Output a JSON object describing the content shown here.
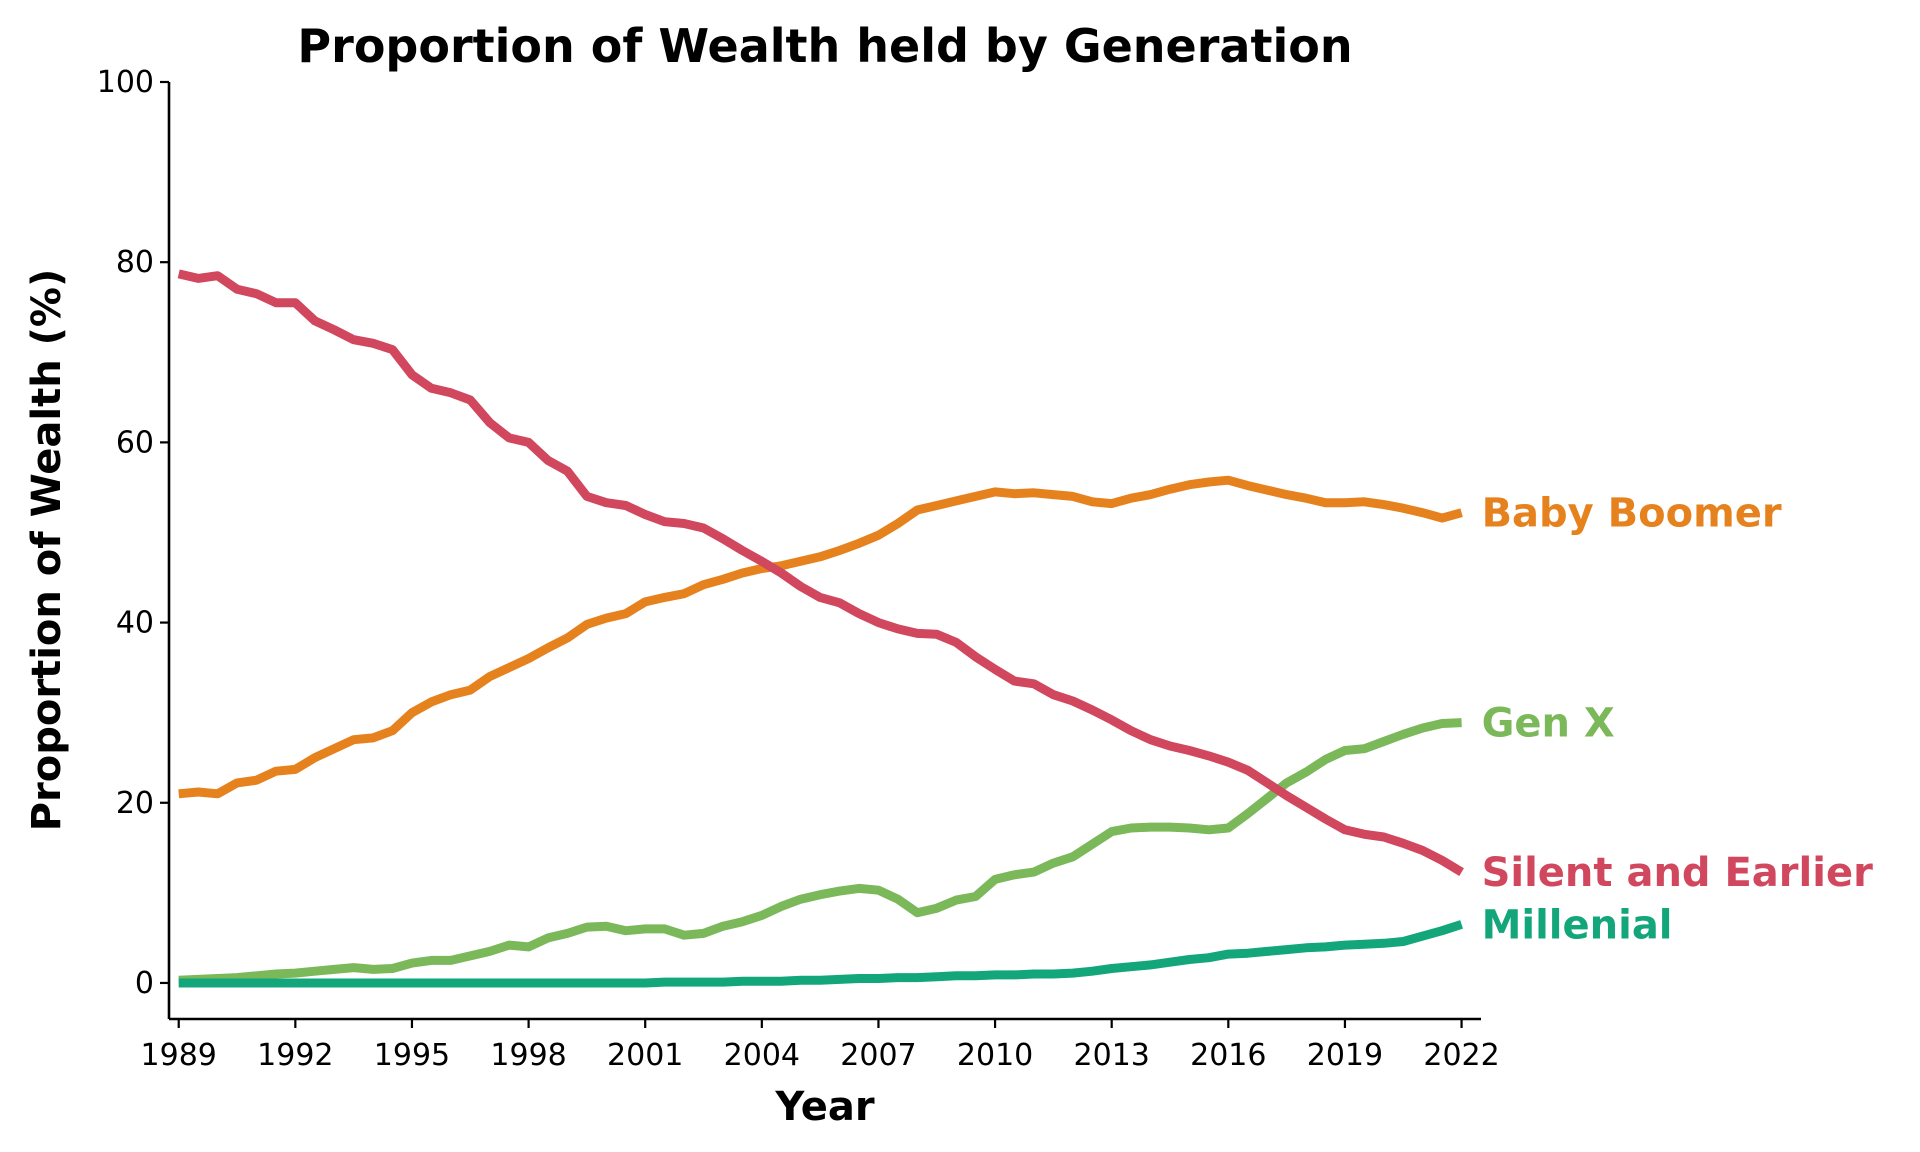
{
  "chart_data": {
    "type": "line",
    "title": "Proportion of Wealth held by Generation",
    "xlabel": "Year",
    "ylabel": "Proportion of Wealth (%)",
    "xlim": [
      1988.75,
      2022.5
    ],
    "ylim": [
      -4,
      100
    ],
    "x_ticks": [
      1989,
      1992,
      1995,
      1998,
      2001,
      2004,
      2007,
      2010,
      2013,
      2016,
      2019,
      2022
    ],
    "y_ticks": [
      0,
      20,
      40,
      60,
      80,
      100
    ],
    "grid": false,
    "legend": "direct-labels-right",
    "x": [
      1989,
      1989.5,
      1990,
      1990.5,
      1991,
      1991.5,
      1992,
      1992.5,
      1993,
      1993.5,
      1994,
      1994.5,
      1995,
      1995.5,
      1996,
      1996.5,
      1997,
      1997.5,
      1998,
      1998.5,
      1999,
      1999.5,
      2000,
      2000.5,
      2001,
      2001.5,
      2002,
      2002.5,
      2003,
      2003.5,
      2004,
      2004.5,
      2005,
      2005.5,
      2006,
      2006.5,
      2007,
      2007.5,
      2008,
      2008.5,
      2009,
      2009.5,
      2010,
      2010.5,
      2011,
      2011.5,
      2012,
      2012.5,
      2013,
      2013.5,
      2014,
      2014.5,
      2015,
      2015.5,
      2016,
      2016.5,
      2017,
      2017.5,
      2018,
      2018.5,
      2019,
      2019.5,
      2020,
      2020.5,
      2021,
      2021.5,
      2022
    ],
    "series": [
      {
        "name": "Baby Boomer",
        "color": "#e6821e",
        "values": [
          21.0,
          21.2,
          21.0,
          22.2,
          22.5,
          23.5,
          23.7,
          25.0,
          26.0,
          27.0,
          27.2,
          28.0,
          30.0,
          31.2,
          32.0,
          32.5,
          34.0,
          35.0,
          36.0,
          37.2,
          38.3,
          39.8,
          40.5,
          41.0,
          42.3,
          42.8,
          43.2,
          44.2,
          44.8,
          45.5,
          46.0,
          46.3,
          46.8,
          47.3,
          48.0,
          48.8,
          49.7,
          51.0,
          52.5,
          53.0,
          53.5,
          54.0,
          54.5,
          54.3,
          54.4,
          54.2,
          54.0,
          53.4,
          53.2,
          53.8,
          54.2,
          54.8,
          55.3,
          55.6,
          55.8,
          55.2,
          54.7,
          54.2,
          53.8,
          53.3,
          53.3,
          53.4,
          53.1,
          52.7,
          52.2,
          51.6,
          52.2
        ]
      },
      {
        "name": "Gen X",
        "color": "#7ab85a",
        "values": [
          0.3,
          0.4,
          0.5,
          0.6,
          0.8,
          1.0,
          1.1,
          1.3,
          1.5,
          1.7,
          1.5,
          1.6,
          2.2,
          2.5,
          2.5,
          3.0,
          3.5,
          4.2,
          4.0,
          5.0,
          5.5,
          6.2,
          6.3,
          5.8,
          6.0,
          6.0,
          5.3,
          5.5,
          6.3,
          6.8,
          7.5,
          8.5,
          9.3,
          9.8,
          10.2,
          10.5,
          10.3,
          9.3,
          7.8,
          8.3,
          9.2,
          9.6,
          11.5,
          12.0,
          12.3,
          13.3,
          14.0,
          15.4,
          16.8,
          17.2,
          17.3,
          17.3,
          17.2,
          17.0,
          17.2,
          18.8,
          20.5,
          22.2,
          23.4,
          24.8,
          25.8,
          26.0,
          26.8,
          27.6,
          28.3,
          28.8,
          28.9
        ]
      },
      {
        "name": "Silent and Earlier",
        "color": "#d1475e",
        "values": [
          78.7,
          78.2,
          78.5,
          77.0,
          76.5,
          75.5,
          75.5,
          73.5,
          72.5,
          71.4,
          71.0,
          70.3,
          67.5,
          66.0,
          65.5,
          64.7,
          62.2,
          60.5,
          60.0,
          58.0,
          56.8,
          54.0,
          53.3,
          53.0,
          52.0,
          51.2,
          51.0,
          50.5,
          49.3,
          48.0,
          46.8,
          45.5,
          44.0,
          42.8,
          42.2,
          41.0,
          40.0,
          39.3,
          38.8,
          38.7,
          37.8,
          36.2,
          34.8,
          33.5,
          33.2,
          32.0,
          31.3,
          30.3,
          29.2,
          28.0,
          27.0,
          26.3,
          25.8,
          25.2,
          24.5,
          23.6,
          22.2,
          20.8,
          19.5,
          18.2,
          17.0,
          16.5,
          16.2,
          15.5,
          14.7,
          13.6,
          12.3
        ]
      },
      {
        "name": "Millenial",
        "color": "#13a67b",
        "values": [
          0,
          0,
          0,
          0,
          0,
          0,
          0,
          0,
          0,
          0,
          0,
          0,
          0,
          0,
          0,
          0,
          0,
          0,
          0,
          0,
          0,
          0,
          0,
          0,
          0,
          0.1,
          0.1,
          0.1,
          0.1,
          0.2,
          0.2,
          0.2,
          0.3,
          0.3,
          0.4,
          0.5,
          0.5,
          0.6,
          0.6,
          0.7,
          0.8,
          0.8,
          0.9,
          0.9,
          1.0,
          1.0,
          1.1,
          1.3,
          1.6,
          1.8,
          2.0,
          2.3,
          2.6,
          2.8,
          3.2,
          3.3,
          3.5,
          3.7,
          3.9,
          4.0,
          4.2,
          4.3,
          4.4,
          4.6,
          5.2,
          5.8,
          6.5
        ]
      }
    ]
  }
}
